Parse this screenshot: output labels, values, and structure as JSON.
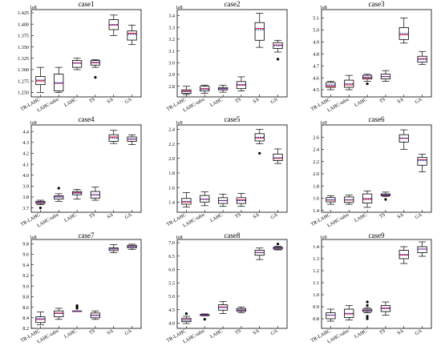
{
  "figure": {
    "method_labels": [
      "TR-LAHC",
      "LAHC-tabu",
      "LAHC",
      "TS",
      "SA",
      "GA"
    ],
    "colors": {
      "box": "#000000",
      "median": "#e8242c",
      "mean": "#2030c8",
      "outlier": "#000000"
    }
  },
  "chart_data": [
    {
      "type": "box",
      "title": "case1",
      "exponent": "1e8",
      "yticks": [
        "1.250",
        "1.275",
        "1.300",
        "1.325",
        "1.350",
        "1.375",
        "1.400",
        "1.425"
      ],
      "ylim": [
        1.24,
        1.432
      ],
      "categories": [
        "TR-LAHC",
        "LAHC-tabu",
        "LAHC",
        "TS",
        "SA",
        "GA"
      ],
      "boxes": [
        {
          "min": 1.25,
          "q1": 1.267,
          "median": 1.275,
          "q3": 1.285,
          "max": 1.305,
          "mean": 1.277,
          "outliers": []
        },
        {
          "min": 1.25,
          "q1": 1.253,
          "median": 1.27,
          "q3": 1.29,
          "max": 1.305,
          "mean": 1.271,
          "outliers": []
        },
        {
          "min": 1.3,
          "q1": 1.305,
          "median": 1.315,
          "q3": 1.32,
          "max": 1.325,
          "mean": 1.314,
          "outliers": []
        },
        {
          "min": 1.305,
          "q1": 1.31,
          "median": 1.315,
          "q3": 1.32,
          "max": 1.322,
          "mean": 1.316,
          "outliers": [
            1.283
          ]
        },
        {
          "min": 1.375,
          "q1": 1.388,
          "median": 1.398,
          "q3": 1.41,
          "max": 1.42,
          "mean": 1.399,
          "outliers": []
        },
        {
          "min": 1.355,
          "q1": 1.365,
          "median": 1.38,
          "q3": 1.385,
          "max": 1.398,
          "mean": 1.378,
          "outliers": []
        }
      ]
    },
    {
      "type": "box",
      "title": "case2",
      "exponent": "1e8",
      "yticks": [
        "2.7",
        "2.8",
        "2.9",
        "3.0",
        "3.1",
        "3.2",
        "3.3",
        "3.4"
      ],
      "ylim": [
        2.71,
        3.45
      ],
      "categories": [
        "TR-LAHC",
        "LAHC-tabu",
        "LAHC",
        "TS",
        "SA",
        "GA"
      ],
      "boxes": [
        {
          "min": 2.73,
          "q1": 2.74,
          "median": 2.76,
          "q3": 2.77,
          "max": 2.8,
          "mean": 2.755,
          "outliers": []
        },
        {
          "min": 2.74,
          "q1": 2.76,
          "median": 2.78,
          "q3": 2.8,
          "max": 2.81,
          "mean": 2.775,
          "outliers": []
        },
        {
          "min": 2.75,
          "q1": 2.77,
          "median": 2.78,
          "q3": 2.79,
          "max": 2.81,
          "mean": 2.78,
          "outliers": []
        },
        {
          "min": 2.76,
          "q1": 2.78,
          "median": 2.81,
          "q3": 2.84,
          "max": 2.88,
          "mean": 2.815,
          "outliers": []
        },
        {
          "min": 3.13,
          "q1": 3.19,
          "median": 3.29,
          "q3": 3.34,
          "max": 3.42,
          "mean": 3.28,
          "outliers": []
        },
        {
          "min": 3.09,
          "q1": 3.12,
          "median": 3.15,
          "q3": 3.17,
          "max": 3.19,
          "mean": 3.145,
          "outliers": [
            3.03
          ]
        }
      ]
    },
    {
      "type": "box",
      "title": "case3",
      "exponent": "1e8",
      "yticks": [
        "4.5",
        "4.6",
        "4.7",
        "4.8",
        "4.9",
        "5.0",
        "5.1"
      ],
      "ylim": [
        4.44,
        5.17
      ],
      "categories": [
        "TR-LAHC",
        "LAHC-tabu",
        "LAHC",
        "TS",
        "SA",
        "GA"
      ],
      "boxes": [
        {
          "min": 4.5,
          "q1": 4.52,
          "median": 4.53,
          "q3": 4.56,
          "max": 4.57,
          "mean": 4.54,
          "outliers": []
        },
        {
          "min": 4.5,
          "q1": 4.52,
          "median": 4.54,
          "q3": 4.58,
          "max": 4.62,
          "mean": 4.55,
          "outliers": []
        },
        {
          "min": 4.57,
          "q1": 4.59,
          "median": 4.6,
          "q3": 4.62,
          "max": 4.63,
          "mean": 4.605,
          "outliers": [
            4.55
          ]
        },
        {
          "min": 4.57,
          "q1": 4.59,
          "median": 4.61,
          "q3": 4.63,
          "max": 4.66,
          "mean": 4.61,
          "outliers": []
        },
        {
          "min": 4.89,
          "q1": 4.92,
          "median": 4.96,
          "q3": 5.02,
          "max": 5.1,
          "mean": 4.97,
          "outliers": []
        },
        {
          "min": 4.71,
          "q1": 4.73,
          "median": 4.76,
          "q3": 4.78,
          "max": 4.82,
          "mean": 4.755,
          "outliers": []
        }
      ]
    },
    {
      "type": "box",
      "title": "case4",
      "exponent": "1e8",
      "yticks": [
        "3.7",
        "3.8",
        "3.9",
        "4.0",
        "4.1",
        "4.2",
        "4.3",
        "4.4"
      ],
      "ylim": [
        3.66,
        4.46
      ],
      "categories": [
        "TR-LAHC",
        "LAHC-tabu",
        "LAHC",
        "TS",
        "SA",
        "GA"
      ],
      "boxes": [
        {
          "min": 3.73,
          "q1": 3.74,
          "median": 3.75,
          "q3": 3.76,
          "max": 3.77,
          "mean": 3.75,
          "outliers": [
            3.7
          ]
        },
        {
          "min": 3.76,
          "q1": 3.78,
          "median": 3.8,
          "q3": 3.81,
          "max": 3.83,
          "mean": 3.8,
          "outliers": [
            3.88
          ]
        },
        {
          "min": 3.78,
          "q1": 3.82,
          "median": 3.84,
          "q3": 3.85,
          "max": 3.87,
          "mean": 3.835,
          "outliers": []
        },
        {
          "min": 3.77,
          "q1": 3.79,
          "median": 3.82,
          "q3": 3.85,
          "max": 3.89,
          "mean": 3.82,
          "outliers": []
        },
        {
          "min": 4.29,
          "q1": 4.31,
          "median": 4.35,
          "q3": 4.37,
          "max": 4.41,
          "mean": 4.34,
          "outliers": []
        },
        {
          "min": 4.28,
          "q1": 4.31,
          "median": 4.33,
          "q3": 4.35,
          "max": 4.37,
          "mean": 4.33,
          "outliers": []
        }
      ]
    },
    {
      "type": "box",
      "title": "case5",
      "exponent": "1e9",
      "yticks": [
        "1.4",
        "1.6",
        "1.8",
        "2.0",
        "2.2",
        "2.4"
      ],
      "ylim": [
        1.26,
        2.46
      ],
      "categories": [
        "TR-LAHC",
        "LAHC-tabu",
        "LAHC",
        "TS",
        "SA",
        "GA"
      ],
      "boxes": [
        {
          "min": 1.33,
          "q1": 1.37,
          "median": 1.4,
          "q3": 1.45,
          "max": 1.53,
          "mean": 1.41,
          "outliers": []
        },
        {
          "min": 1.35,
          "q1": 1.4,
          "median": 1.44,
          "q3": 1.49,
          "max": 1.54,
          "mean": 1.44,
          "outliers": []
        },
        {
          "min": 1.34,
          "q1": 1.38,
          "median": 1.42,
          "q3": 1.46,
          "max": 1.51,
          "mean": 1.42,
          "outliers": []
        },
        {
          "min": 1.34,
          "q1": 1.38,
          "median": 1.43,
          "q3": 1.46,
          "max": 1.52,
          "mean": 1.42,
          "outliers": []
        },
        {
          "min": 2.2,
          "q1": 2.24,
          "median": 2.28,
          "q3": 2.34,
          "max": 2.4,
          "mean": 2.29,
          "outliers": [
            2.07
          ]
        },
        {
          "min": 1.93,
          "q1": 1.97,
          "median": 2.0,
          "q3": 2.06,
          "max": 2.13,
          "mean": 2.01,
          "outliers": []
        }
      ]
    },
    {
      "type": "box",
      "title": "case6",
      "exponent": "1e9",
      "yticks": [
        "1.4",
        "1.6",
        "1.8",
        "2.0",
        "2.2",
        "2.4",
        "2.6"
      ],
      "ylim": [
        1.37,
        2.8
      ],
      "categories": [
        "TR-LAHC",
        "LAHC-tabu",
        "LAHC",
        "TS",
        "SA",
        "GA"
      ],
      "boxes": [
        {
          "min": 1.5,
          "q1": 1.54,
          "median": 1.57,
          "q3": 1.61,
          "max": 1.64,
          "mean": 1.575,
          "outliers": []
        },
        {
          "min": 1.5,
          "q1": 1.53,
          "median": 1.57,
          "q3": 1.62,
          "max": 1.65,
          "mean": 1.575,
          "outliers": []
        },
        {
          "min": 1.45,
          "q1": 1.52,
          "median": 1.58,
          "q3": 1.67,
          "max": 1.72,
          "mean": 1.595,
          "outliers": []
        },
        {
          "min": 1.63,
          "q1": 1.64,
          "median": 1.65,
          "q3": 1.67,
          "max": 1.7,
          "mean": 1.655,
          "outliers": [
            1.58
          ]
        },
        {
          "min": 2.4,
          "q1": 2.52,
          "median": 2.58,
          "q3": 2.64,
          "max": 2.72,
          "mean": 2.585,
          "outliers": []
        },
        {
          "min": 2.03,
          "q1": 2.14,
          "median": 2.23,
          "q3": 2.27,
          "max": 2.32,
          "mean": 2.22,
          "outliers": []
        }
      ]
    },
    {
      "type": "box",
      "title": "case7",
      "exponent": "1e8",
      "yticks": [
        "8.2",
        "8.4",
        "8.6",
        "8.8",
        "9.0",
        "9.2",
        "9.4",
        "9.6",
        "9.8"
      ],
      "ylim": [
        8.2,
        9.88
      ],
      "categories": [
        "TR-LAHC",
        "LAHC-tabu",
        "LAHC",
        "TS",
        "SA",
        "GA"
      ],
      "boxes": [
        {
          "min": 8.27,
          "q1": 8.31,
          "median": 8.37,
          "q3": 8.42,
          "max": 8.51,
          "mean": 8.38,
          "outliers": []
        },
        {
          "min": 8.37,
          "q1": 8.42,
          "median": 8.49,
          "q3": 8.53,
          "max": 8.58,
          "mean": 8.48,
          "outliers": []
        },
        {
          "min": 8.52,
          "q1": 8.52,
          "median": 8.52,
          "q3": 8.53,
          "max": 8.53,
          "mean": 8.525,
          "outliers": [
            8.58,
            8.61,
            8.63
          ]
        },
        {
          "min": 8.37,
          "q1": 8.4,
          "median": 8.45,
          "q3": 8.49,
          "max": 8.53,
          "mean": 8.445,
          "outliers": []
        },
        {
          "min": 9.63,
          "q1": 9.67,
          "median": 9.7,
          "q3": 9.72,
          "max": 9.78,
          "mean": 9.7,
          "outliers": []
        },
        {
          "min": 9.69,
          "q1": 9.72,
          "median": 9.75,
          "q3": 9.77,
          "max": 9.79,
          "mean": 9.745,
          "outliers": []
        }
      ]
    },
    {
      "type": "box",
      "title": "case8",
      "exponent": "1e8",
      "yticks": [
        "4.0",
        "4.5",
        "5.0",
        "5.5",
        "6.0",
        "6.5",
        "7.0"
      ],
      "ylim": [
        3.8,
        7.12
      ],
      "categories": [
        "TR-LAHC",
        "LAHC-tabu",
        "LAHC",
        "TS",
        "SA",
        "GA"
      ],
      "boxes": [
        {
          "min": 3.98,
          "q1": 4.05,
          "median": 4.12,
          "q3": 4.18,
          "max": 4.25,
          "mean": 4.11,
          "outliers": [
            4.35
          ]
        },
        {
          "min": 4.27,
          "q1": 4.28,
          "median": 4.3,
          "q3": 4.32,
          "max": 4.34,
          "mean": 4.3,
          "outliers": [
            4.14
          ]
        },
        {
          "min": 4.35,
          "q1": 4.48,
          "median": 4.6,
          "q3": 4.68,
          "max": 4.8,
          "mean": 4.58,
          "outliers": []
        },
        {
          "min": 4.38,
          "q1": 4.44,
          "median": 4.48,
          "q3": 4.54,
          "max": 4.6,
          "mean": 4.49,
          "outliers": []
        },
        {
          "min": 6.37,
          "q1": 6.53,
          "median": 6.63,
          "q3": 6.72,
          "max": 6.8,
          "mean": 6.63,
          "outliers": []
        },
        {
          "min": 6.73,
          "q1": 6.76,
          "median": 6.8,
          "q3": 6.83,
          "max": 6.86,
          "mean": 6.8,
          "outliers": [
            6.95
          ]
        }
      ]
    },
    {
      "type": "box",
      "title": "case9",
      "exponent": "1e9",
      "yticks": [
        "0.8",
        "0.9",
        "1.0",
        "1.1",
        "1.2",
        "1.3",
        "1.4"
      ],
      "ylim": [
        0.72,
        1.46
      ],
      "categories": [
        "TR-LAHC",
        "LAHC-tabu",
        "LAHC",
        "TS",
        "SA",
        "GA"
      ],
      "boxes": [
        {
          "min": 0.78,
          "q1": 0.8,
          "median": 0.83,
          "q3": 0.85,
          "max": 0.88,
          "mean": 0.83,
          "outliers": []
        },
        {
          "min": 0.79,
          "q1": 0.81,
          "median": 0.84,
          "q3": 0.88,
          "max": 0.91,
          "mean": 0.845,
          "outliers": []
        },
        {
          "min": 0.85,
          "q1": 0.86,
          "median": 0.87,
          "q3": 0.88,
          "max": 0.89,
          "mean": 0.87,
          "outliers": [
            0.8,
            0.82,
            0.91,
            0.94
          ]
        },
        {
          "min": 0.83,
          "q1": 0.86,
          "median": 0.89,
          "q3": 0.91,
          "max": 0.94,
          "mean": 0.885,
          "outliers": []
        },
        {
          "min": 1.26,
          "q1": 1.3,
          "median": 1.33,
          "q3": 1.37,
          "max": 1.4,
          "mean": 1.335,
          "outliers": []
        },
        {
          "min": 1.32,
          "q1": 1.35,
          "median": 1.38,
          "q3": 1.4,
          "max": 1.44,
          "mean": 1.38,
          "outliers": []
        }
      ]
    }
  ]
}
